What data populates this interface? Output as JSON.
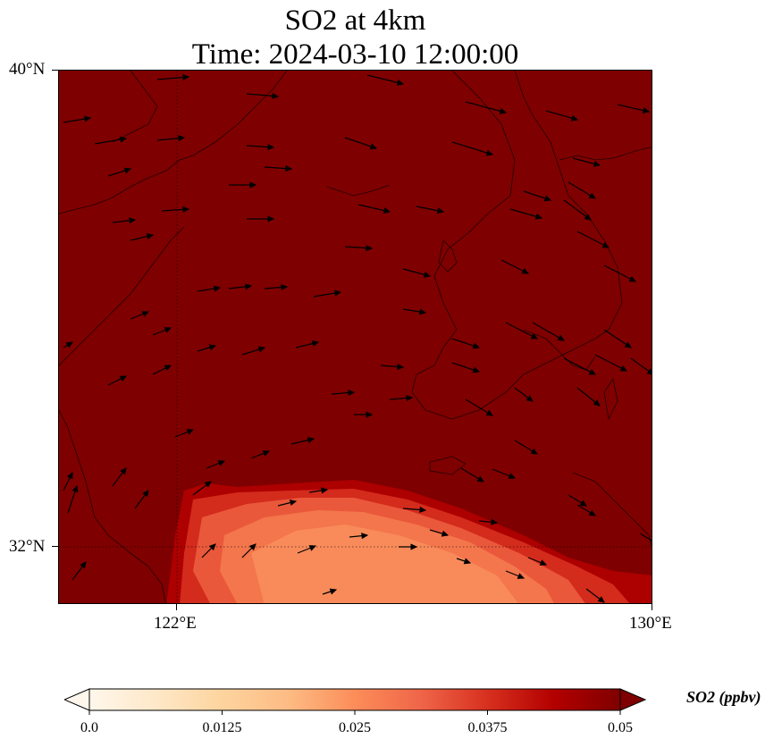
{
  "title_line1": "SO2 at 4km",
  "title_line2": "Time: 2024-03-10 12:00:00",
  "lat_labels": [
    "40°N",
    "32°N"
  ],
  "lon_labels": [
    "122°E",
    "130°E"
  ],
  "colorbar": {
    "label": "SO2 (ppbv)",
    "ticks": [
      "0.0",
      "0.0125",
      "0.025",
      "0.0375",
      "0.05"
    ],
    "range": [
      0.0,
      0.05
    ],
    "extend": "both",
    "colormap": "OrRd",
    "colors": [
      "#fff7ec",
      "#fee8c8",
      "#fdd49e",
      "#fdbb84",
      "#fc8d59",
      "#ef6548",
      "#d7301f",
      "#b30000",
      "#7f0000"
    ]
  },
  "map": {
    "extent_lon": [
      120,
      130
    ],
    "extent_lat": [
      31,
      40
    ],
    "gridlines_lon": [
      122,
      130
    ],
    "gridlines_lat": [
      32,
      40
    ],
    "background_value": 0.05,
    "plume": {
      "description_value_min": 0.018,
      "region": "southern edge, approx 122E-130E, 31-32.8N"
    },
    "wind_vectors": "black arrows, predominantly westerly to west-northwesterly"
  }
}
